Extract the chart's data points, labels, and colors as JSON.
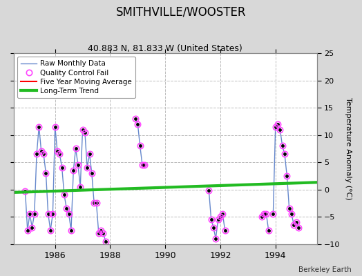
{
  "title": "SMITHVILLE/WOOSTER",
  "subtitle": "40.883 N, 81.833 W (United States)",
  "credit": "Berkeley Earth",
  "ylabel_right": "Temperature Anomaly (°C)",
  "ylim": [
    -10,
    25
  ],
  "yticks": [
    -10,
    -5,
    0,
    5,
    10,
    15,
    20,
    25
  ],
  "xlim": [
    1984.5,
    1995.5
  ],
  "xticks": [
    1986,
    1988,
    1990,
    1992,
    1994
  ],
  "bg_color": "#d8d8d8",
  "plot_bg_color": "#ffffff",
  "grid_color": "#bbbbbb",
  "raw_line_color": "#6688cc",
  "raw_marker_color": "#000000",
  "qc_color": "#ff44ff",
  "ma_color": "#ff0000",
  "trend_color": "#22bb22",
  "trend_x": [
    1984.5,
    1995.5
  ],
  "trend_y": [
    -0.55,
    1.3
  ],
  "segments": [
    {
      "x": [
        1984.917,
        1985.0,
        1985.083,
        1985.167,
        1985.25,
        1985.333,
        1985.417,
        1985.5,
        1985.583,
        1985.667,
        1985.75,
        1985.833,
        1985.917,
        1986.0,
        1986.083,
        1986.167,
        1986.25,
        1986.333,
        1986.417,
        1986.5,
        1986.583,
        1986.667,
        1986.75,
        1986.833,
        1986.917,
        1987.0,
        1987.083,
        1987.167,
        1987.25,
        1987.333,
        1987.417,
        1987.5,
        1987.583,
        1987.667,
        1987.75,
        1987.833
      ],
      "y": [
        -0.3,
        -7.5,
        -4.5,
        -7.0,
        -4.5,
        6.5,
        11.5,
        7.0,
        6.5,
        3.0,
        -4.5,
        -7.5,
        -4.5,
        11.5,
        7.0,
        6.5,
        4.0,
        -1.0,
        -3.5,
        -4.5,
        -7.5,
        3.5,
        7.5,
        4.5,
        0.5,
        11.0,
        10.5,
        4.0,
        6.5,
        3.0,
        -2.5,
        -2.5,
        -8.0,
        -7.5,
        -8.0,
        -9.5
      ]
    },
    {
      "x": [
        1988.917,
        1989.0,
        1989.083,
        1989.167,
        1989.25
      ],
      "y": [
        13.0,
        12.0,
        8.0,
        4.5,
        4.5
      ]
    },
    {
      "x": [
        1991.583,
        1991.667,
        1991.75,
        1991.833,
        1991.917,
        1992.0,
        1992.083,
        1992.167
      ],
      "y": [
        -0.2,
        -5.5,
        -7.0,
        -9.0,
        -5.5,
        -5.0,
        -4.5,
        -7.5
      ]
    },
    {
      "x": [
        1993.5,
        1993.583,
        1993.667,
        1993.75
      ],
      "y": [
        -5.0,
        -4.5,
        -4.5,
        -7.5
      ]
    },
    {
      "x": [
        1993.917,
        1994.0,
        1994.083,
        1994.167,
        1994.25,
        1994.333,
        1994.417,
        1994.5,
        1994.583,
        1994.667,
        1994.75,
        1994.833
      ],
      "y": [
        -4.5,
        11.5,
        12.0,
        11.0,
        8.0,
        6.5,
        2.5,
        -3.5,
        -4.5,
        -6.5,
        -6.0,
        -7.0
      ]
    }
  ],
  "all_x": [
    1984.917,
    1985.0,
    1985.083,
    1985.167,
    1985.25,
    1985.333,
    1985.417,
    1985.5,
    1985.583,
    1985.667,
    1985.75,
    1985.833,
    1985.917,
    1986.0,
    1986.083,
    1986.167,
    1986.25,
    1986.333,
    1986.417,
    1986.5,
    1986.583,
    1986.667,
    1986.75,
    1986.833,
    1986.917,
    1987.0,
    1987.083,
    1987.167,
    1987.25,
    1987.333,
    1987.417,
    1987.5,
    1987.583,
    1987.667,
    1987.75,
    1987.833,
    1988.917,
    1989.0,
    1989.083,
    1989.167,
    1989.25,
    1991.583,
    1991.667,
    1991.75,
    1991.833,
    1991.917,
    1992.0,
    1992.083,
    1992.167,
    1993.5,
    1993.583,
    1993.667,
    1993.75,
    1993.917,
    1994.0,
    1994.083,
    1994.167,
    1994.25,
    1994.333,
    1994.417,
    1994.5,
    1994.583,
    1994.667,
    1994.75,
    1994.833
  ],
  "all_y": [
    -0.3,
    -7.5,
    -4.5,
    -7.0,
    -4.5,
    6.5,
    11.5,
    7.0,
    6.5,
    3.0,
    -4.5,
    -7.5,
    -4.5,
    11.5,
    7.0,
    6.5,
    4.0,
    -1.0,
    -3.5,
    -4.5,
    -7.5,
    3.5,
    7.5,
    4.5,
    0.5,
    11.0,
    10.5,
    4.0,
    6.5,
    3.0,
    -2.5,
    -2.5,
    -8.0,
    -7.5,
    -8.0,
    -9.5,
    13.0,
    12.0,
    8.0,
    4.5,
    4.5,
    -0.2,
    -5.5,
    -7.0,
    -9.0,
    -5.5,
    -5.0,
    -4.5,
    -7.5,
    -5.0,
    -4.5,
    -4.5,
    -7.5,
    -4.5,
    11.5,
    12.0,
    11.0,
    8.0,
    6.5,
    2.5,
    -3.5,
    -4.5,
    -6.5,
    -6.0,
    -7.0
  ]
}
